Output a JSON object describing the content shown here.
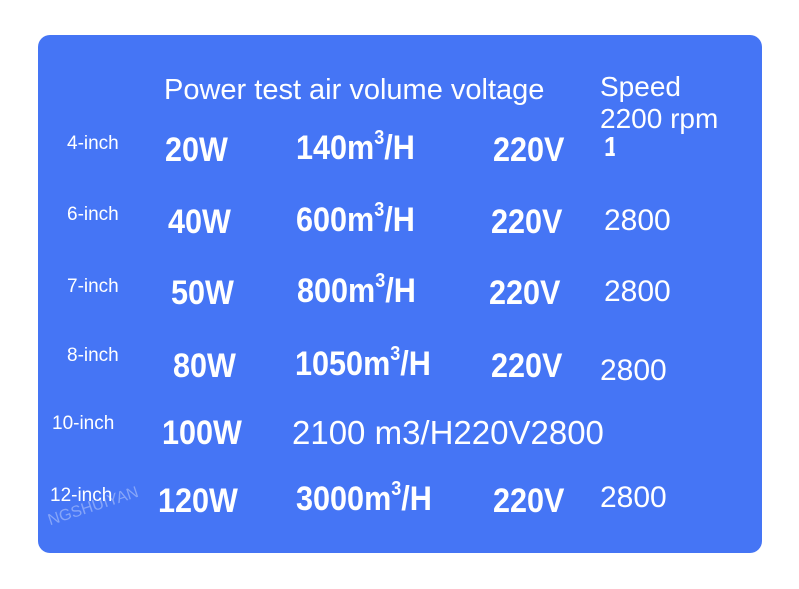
{
  "theme": {
    "card_color": "#4575f5",
    "text_color": "#ffffff"
  },
  "header": {
    "columns": "Power test air volume voltage",
    "speed_label": "Speed",
    "speed_value": "2200 rpm"
  },
  "rows": [
    {
      "size": "4-inch",
      "power": "20W",
      "airflow": "140m",
      "airflow_sup": "3",
      "airflow_unit": "/H",
      "voltage": "220V",
      "speed": "1"
    },
    {
      "size": "6-inch",
      "power": "40W",
      "airflow": "600m",
      "airflow_sup": "3",
      "airflow_unit": "/H",
      "voltage": "220V",
      "speed": "2800"
    },
    {
      "size": "7-inch",
      "power": "50W",
      "airflow": "800m",
      "airflow_sup": "3",
      "airflow_unit": "/H",
      "voltage": "220V",
      "speed": "2800"
    },
    {
      "size": "8-inch",
      "power": "80W",
      "airflow": "1050m",
      "airflow_sup": "3",
      "airflow_unit": "/H",
      "voltage": "220V",
      "speed": "2800"
    },
    {
      "size": "10-inch",
      "power": "100W",
      "combined": "2100 m3/H220V2800"
    },
    {
      "size": "12-inch",
      "power": "120W",
      "airflow": "3000m",
      "airflow_sup": "3",
      "airflow_unit": "/H",
      "voltage": "220V",
      "speed": "2800"
    }
  ],
  "watermark": "NGSHUIYAN"
}
